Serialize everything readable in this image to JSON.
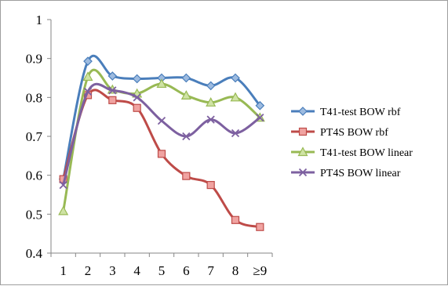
{
  "chart_data": {
    "type": "line",
    "title": "",
    "xlabel": "",
    "ylabel": "",
    "categories": [
      "1",
      "2",
      "3",
      "4",
      "5",
      "6",
      "7",
      "8",
      "≥9"
    ],
    "ylim": [
      0.4,
      1.0
    ],
    "yticks": [
      "0.4",
      "0.5",
      "0.6",
      "0.7",
      "0.8",
      "0.9",
      "1"
    ],
    "grid": false,
    "smooth": true,
    "legend_position": "right",
    "series": [
      {
        "name": "T41-test BOW rbf",
        "color": "#4a7ebb",
        "marker": "diamond",
        "values": [
          0.59,
          0.893,
          0.855,
          0.848,
          0.85,
          0.85,
          0.83,
          0.85,
          0.779
        ]
      },
      {
        "name": "PT4S BOW rbf",
        "color": "#be4b48",
        "marker": "square",
        "values": [
          0.59,
          0.806,
          0.793,
          0.773,
          0.655,
          0.598,
          0.575,
          0.485,
          0.467
        ]
      },
      {
        "name": "T41-test BOW linear",
        "color": "#98b954",
        "marker": "triangle",
        "values": [
          0.508,
          0.853,
          0.82,
          0.81,
          0.835,
          0.805,
          0.787,
          0.8,
          0.748
        ]
      },
      {
        "name": "PT4S BOW linear",
        "color": "#7d60a0",
        "marker": "x",
        "values": [
          0.575,
          0.815,
          0.818,
          0.8,
          0.74,
          0.7,
          0.743,
          0.708,
          0.748
        ]
      }
    ]
  }
}
